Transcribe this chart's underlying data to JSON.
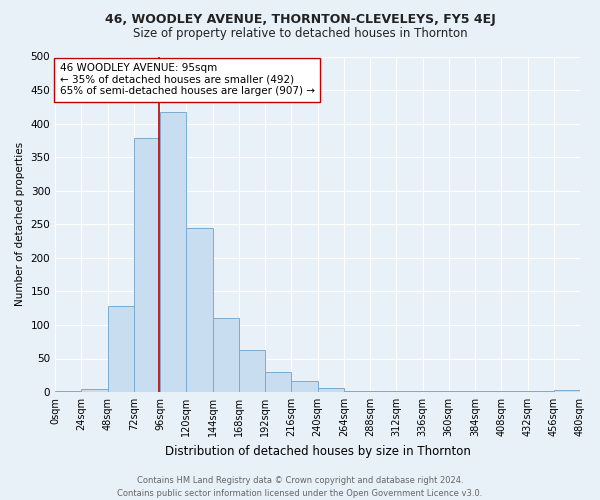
{
  "title": "46, WOODLEY AVENUE, THORNTON-CLEVELEYS, FY5 4EJ",
  "subtitle": "Size of property relative to detached houses in Thornton",
  "xlabel": "Distribution of detached houses by size in Thornton",
  "ylabel": "Number of detached properties",
  "bar_color": "#c9ddf0",
  "bar_edge_color": "#7aabcf",
  "bg_color": "#e8f0f8",
  "grid_color": "#ffffff",
  "bin_edges": [
    0,
    24,
    48,
    72,
    96,
    120,
    144,
    168,
    192,
    216,
    240,
    264,
    288,
    312,
    336,
    360,
    384,
    408,
    432,
    456,
    480
  ],
  "counts": [
    2,
    4,
    128,
    378,
    418,
    245,
    110,
    63,
    30,
    17,
    6,
    2,
    2,
    2,
    2,
    2,
    2,
    2,
    2,
    3
  ],
  "property_size": 95,
  "annotation_line_color": "#c00000",
  "annotation_text_line1": "46 WOODLEY AVENUE: 95sqm",
  "annotation_text_line2": "← 35% of detached houses are smaller (492)",
  "annotation_text_line3": "65% of semi-detached houses are larger (907) →",
  "annotation_box_facecolor": "#ffffff",
  "annotation_box_edgecolor": "#c00000",
  "footer": "Contains HM Land Registry data © Crown copyright and database right 2024.\nContains public sector information licensed under the Open Government Licence v3.0.",
  "ylim": [
    0,
    500
  ],
  "yticks": [
    0,
    50,
    100,
    150,
    200,
    250,
    300,
    350,
    400,
    450,
    500
  ],
  "tick_labels": [
    "0sqm",
    "24sqm",
    "48sqm",
    "72sqm",
    "96sqm",
    "120sqm",
    "144sqm",
    "168sqm",
    "192sqm",
    "216sqm",
    "240sqm",
    "264sqm",
    "288sqm",
    "312sqm",
    "336sqm",
    "360sqm",
    "384sqm",
    "408sqm",
    "432sqm",
    "456sqm",
    "480sqm"
  ],
  "title_fontsize": 9,
  "subtitle_fontsize": 8.5,
  "xlabel_fontsize": 8.5,
  "ylabel_fontsize": 7.5,
  "tick_fontsize": 7,
  "ytick_fontsize": 7.5,
  "footer_fontsize": 6,
  "annotation_fontsize": 7.5,
  "fig_facecolor": "#e8f0f8"
}
